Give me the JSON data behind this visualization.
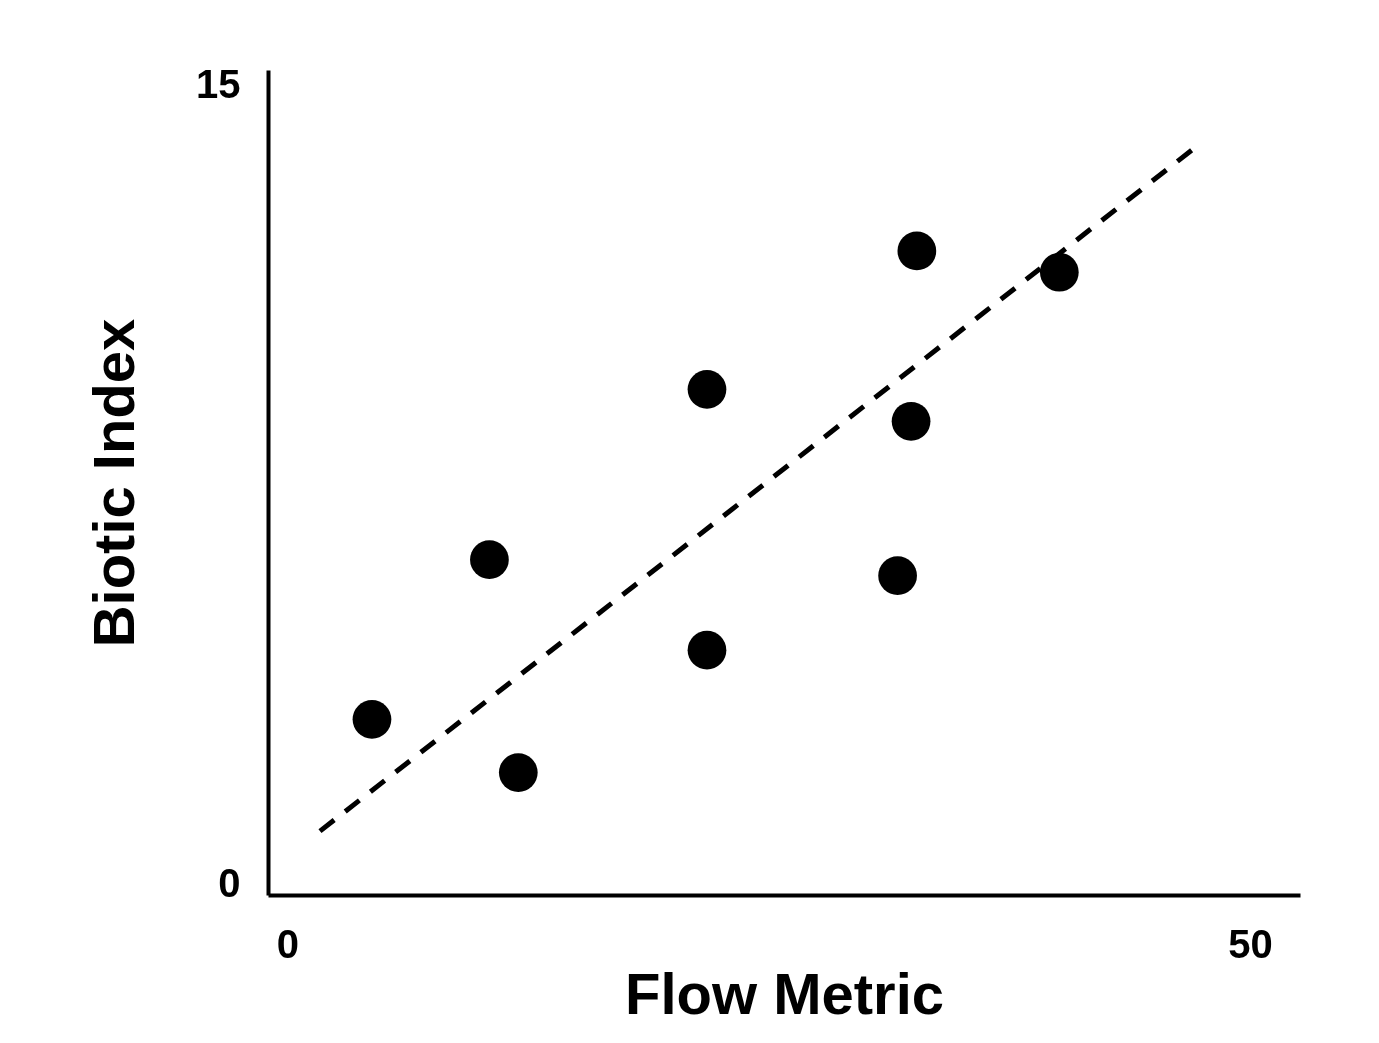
{
  "chart_data": {
    "type": "scatter",
    "xlabel": "Flow Metric",
    "ylabel": "Biotic Index",
    "xlim": [
      -1,
      52.6
    ],
    "ylim": [
      -0.2,
      15.3
    ],
    "xticks": [
      0,
      50
    ],
    "yticks": [
      0,
      15
    ],
    "marker": "circle",
    "series": [
      {
        "color": "#000000",
        "x": [
          4.4,
          12.0,
          10.5,
          21.8,
          21.8,
          31.7,
          32.4,
          32.7,
          40.1
        ],
        "values": [
          3.1,
          2.1,
          6.1,
          4.4,
          9.3,
          5.8,
          8.7,
          11.9,
          11.5
        ]
      },
      {
        "type": "line",
        "color": "#000000",
        "line_style": "dashed",
        "marker": "none",
        "x": [
          1.7,
          47.0
        ],
        "values": [
          1.0,
          13.8
        ]
      }
    ]
  }
}
